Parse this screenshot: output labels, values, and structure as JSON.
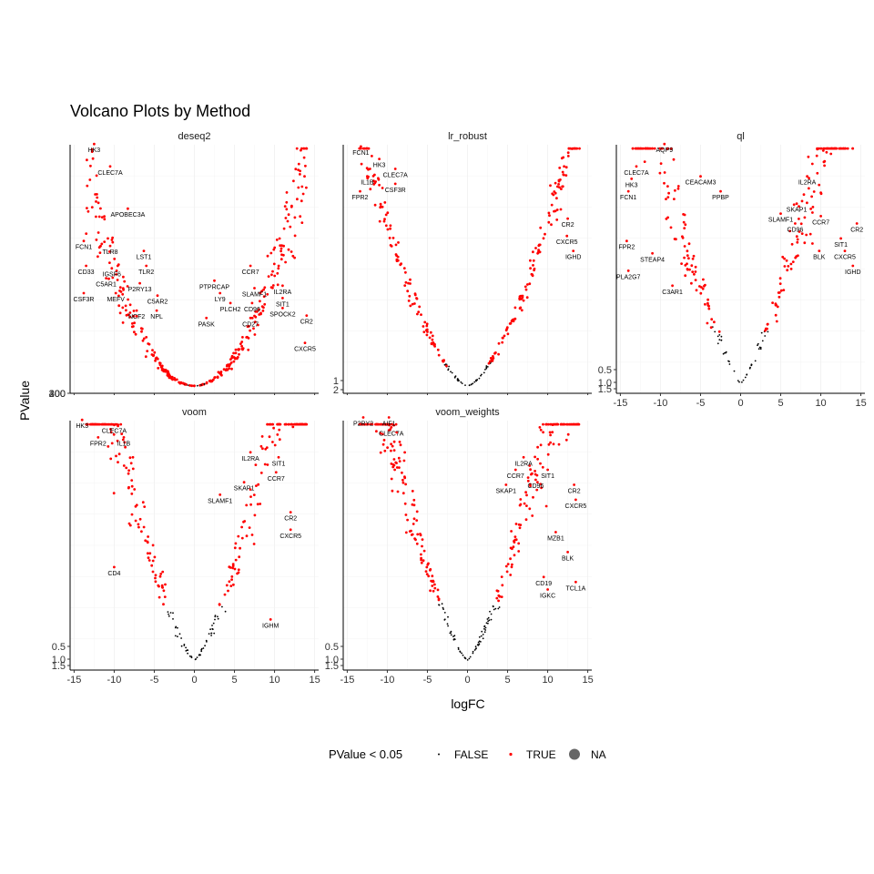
{
  "chart_data": {
    "type": "scatter",
    "title": "Volcano Plots by Method",
    "xlabel": "logFC",
    "ylabel": "PValue",
    "xlim": [
      -15.5,
      15.5
    ],
    "x_ticks": [
      -15,
      -10,
      -5,
      0,
      5,
      10,
      15
    ],
    "legend": {
      "title": "PValue < 0.05",
      "position": "bottom",
      "entries": [
        {
          "label": "FALSE",
          "color": "#000000"
        },
        {
          "label": "TRUE",
          "color": "#ff0000"
        },
        {
          "label": "NA",
          "color": "#666666"
        }
      ]
    },
    "panels": [
      {
        "name": "deseq2",
        "y_ticks": [
          "300",
          "400",
          "200"
        ],
        "labels": [
          {
            "text": "HK3",
            "x": -12.5,
            "h": 0.97
          },
          {
            "text": "CLEC7A",
            "x": -10.5,
            "h": 0.88
          },
          {
            "text": "APOBEC3A",
            "x": -8.3,
            "h": 0.71
          },
          {
            "text": "FCN1",
            "x": -13.8,
            "h": 0.58
          },
          {
            "text": "TLR8",
            "x": -10.5,
            "h": 0.56
          },
          {
            "text": "LST1",
            "x": -6.3,
            "h": 0.54
          },
          {
            "text": "CD33",
            "x": -13.5,
            "h": 0.48
          },
          {
            "text": "IGSF6",
            "x": -10.3,
            "h": 0.47
          },
          {
            "text": "TLR2",
            "x": -6.0,
            "h": 0.48
          },
          {
            "text": "C5AR1",
            "x": -11.0,
            "h": 0.43
          },
          {
            "text": "P2RY13",
            "x": -6.8,
            "h": 0.41
          },
          {
            "text": "MEFV",
            "x": -9.8,
            "h": 0.37
          },
          {
            "text": "CSF3R",
            "x": -13.8,
            "h": 0.37
          },
          {
            "text": "C5AR2",
            "x": -4.6,
            "h": 0.36
          },
          {
            "text": "NCF2",
            "x": -7.2,
            "h": 0.3
          },
          {
            "text": "NPL",
            "x": -4.7,
            "h": 0.3
          },
          {
            "text": "PTPRCAP",
            "x": 2.5,
            "h": 0.42
          },
          {
            "text": "CCR7",
            "x": 7.0,
            "h": 0.48
          },
          {
            "text": "SLAMF1",
            "x": 7.5,
            "h": 0.39
          },
          {
            "text": "LY9",
            "x": 3.2,
            "h": 0.37
          },
          {
            "text": "IL2RA",
            "x": 11.0,
            "h": 0.4
          },
          {
            "text": "PLCH2",
            "x": 4.5,
            "h": 0.33
          },
          {
            "text": "CD96",
            "x": 7.2,
            "h": 0.33
          },
          {
            "text": "SIT1",
            "x": 11.0,
            "h": 0.35
          },
          {
            "text": "SPOCK2",
            "x": 11.0,
            "h": 0.31
          },
          {
            "text": "PASK",
            "x": 1.5,
            "h": 0.27
          },
          {
            "text": "CD27",
            "x": 7.0,
            "h": 0.27
          },
          {
            "text": "CR2",
            "x": 14.0,
            "h": 0.28
          },
          {
            "text": "CXCR5",
            "x": 13.8,
            "h": 0.17
          }
        ]
      },
      {
        "name": "lr_robust",
        "y_ticks": [
          "1",
          "2"
        ],
        "labels": [
          {
            "text": "FCN1",
            "x": -13.3,
            "h": 0.96
          },
          {
            "text": "HK3",
            "x": -11.0,
            "h": 0.91
          },
          {
            "text": "CLEC7A",
            "x": -9.0,
            "h": 0.87
          },
          {
            "text": "IL1B",
            "x": -12.5,
            "h": 0.84
          },
          {
            "text": "CSF3R",
            "x": -9.0,
            "h": 0.81
          },
          {
            "text": "FPR2",
            "x": -13.4,
            "h": 0.78
          },
          {
            "text": "CR2",
            "x": 12.5,
            "h": 0.67
          },
          {
            "text": "CXCR5",
            "x": 12.4,
            "h": 0.6
          },
          {
            "text": "IGHD",
            "x": 13.2,
            "h": 0.54
          }
        ]
      },
      {
        "name": "ql",
        "y_ticks": [
          "0.5",
          "1.0",
          "1.5"
        ],
        "labels": [
          {
            "text": "AQP9",
            "x": -9.5,
            "h": 0.97
          },
          {
            "text": "CLEC7A",
            "x": -13.0,
            "h": 0.88
          },
          {
            "text": "HK3",
            "x": -13.6,
            "h": 0.83
          },
          {
            "text": "CEACAM3",
            "x": -5.0,
            "h": 0.84
          },
          {
            "text": "IL2RA",
            "x": 8.3,
            "h": 0.84
          },
          {
            "text": "FCN1",
            "x": -14.0,
            "h": 0.78
          },
          {
            "text": "PPBP",
            "x": -2.5,
            "h": 0.78
          },
          {
            "text": "SKAP1",
            "x": 7.0,
            "h": 0.73
          },
          {
            "text": "SLAMF1",
            "x": 5.0,
            "h": 0.69
          },
          {
            "text": "CCR7",
            "x": 10.0,
            "h": 0.68
          },
          {
            "text": "CD96",
            "x": 6.8,
            "h": 0.65
          },
          {
            "text": "CR2",
            "x": 14.5,
            "h": 0.65
          },
          {
            "text": "SIT1",
            "x": 12.5,
            "h": 0.59
          },
          {
            "text": "FPR2",
            "x": -14.2,
            "h": 0.58
          },
          {
            "text": "BLK",
            "x": 9.8,
            "h": 0.54
          },
          {
            "text": "CXCR5",
            "x": 13.0,
            "h": 0.54
          },
          {
            "text": "STEAP4",
            "x": -11.0,
            "h": 0.53
          },
          {
            "text": "IGHD",
            "x": 14.0,
            "h": 0.48
          },
          {
            "text": "PLA2G7",
            "x": -14.0,
            "h": 0.46
          },
          {
            "text": "C3AR1",
            "x": -8.5,
            "h": 0.4
          }
        ]
      },
      {
        "name": "voom",
        "y_ticks": [
          "0.5",
          "1.0",
          "1.5"
        ],
        "labels": [
          {
            "text": "HK3",
            "x": -14.0,
            "h": 0.97
          },
          {
            "text": "CLEC7A",
            "x": -10.0,
            "h": 0.95
          },
          {
            "text": "FPR2",
            "x": -12.0,
            "h": 0.9
          },
          {
            "text": "IL1B",
            "x": -8.8,
            "h": 0.9
          },
          {
            "text": "IL2RA",
            "x": 7.0,
            "h": 0.84
          },
          {
            "text": "SIT1",
            "x": 10.5,
            "h": 0.82
          },
          {
            "text": "CCR7",
            "x": 10.2,
            "h": 0.76
          },
          {
            "text": "SKAP1",
            "x": 6.2,
            "h": 0.72
          },
          {
            "text": "SLAMF1",
            "x": 3.2,
            "h": 0.67
          },
          {
            "text": "CR2",
            "x": 12.0,
            "h": 0.6
          },
          {
            "text": "CXCR5",
            "x": 12.0,
            "h": 0.53
          },
          {
            "text": "CD4",
            "x": -10.0,
            "h": 0.38
          },
          {
            "text": "IGHM",
            "x": 9.5,
            "h": 0.17
          }
        ]
      },
      {
        "name": "voom_weights",
        "y_ticks": [
          "0.5",
          "1.0",
          "1.5"
        ],
        "labels": [
          {
            "text": "P2RY2",
            "x": -13.0,
            "h": 0.98
          },
          {
            "text": "AIF1",
            "x": -9.8,
            "h": 0.98
          },
          {
            "text": "CLEC7A",
            "x": -9.5,
            "h": 0.94
          },
          {
            "text": "IL2RA",
            "x": 7.0,
            "h": 0.82
          },
          {
            "text": "CCR7",
            "x": 6.0,
            "h": 0.77
          },
          {
            "text": "SIT1",
            "x": 10.0,
            "h": 0.77
          },
          {
            "text": "CD96",
            "x": 8.5,
            "h": 0.73
          },
          {
            "text": "SKAP1",
            "x": 4.8,
            "h": 0.71
          },
          {
            "text": "CR2",
            "x": 13.3,
            "h": 0.71
          },
          {
            "text": "CXCR5",
            "x": 13.5,
            "h": 0.65
          },
          {
            "text": "MZB1",
            "x": 11.0,
            "h": 0.52
          },
          {
            "text": "BLK",
            "x": 12.5,
            "h": 0.44
          },
          {
            "text": "CD19",
            "x": 9.5,
            "h": 0.34
          },
          {
            "text": "IGKC",
            "x": 10.0,
            "h": 0.29
          },
          {
            "text": "TCL1A",
            "x": 13.5,
            "h": 0.32
          }
        ]
      }
    ]
  }
}
